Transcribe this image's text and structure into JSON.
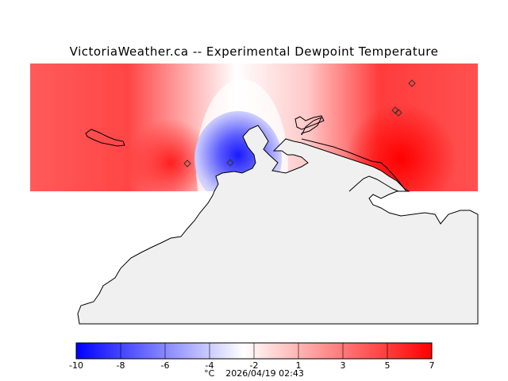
{
  "title": "VictoriaWeather.ca -- Experimental Dewpoint Temperature",
  "units": "°C",
  "timestamp": "2026/04/19 02:43",
  "colorbar": {
    "min": -10,
    "max": 7,
    "ticks": [
      "-10",
      "-8",
      "-6",
      "-4",
      "-2",
      "1",
      "3",
      "5",
      "7"
    ],
    "colors": {
      "cold": "#0000ff",
      "neutral": "#ffffff",
      "warm": "#ff0000"
    }
  },
  "map": {
    "land_color": "#f0f0f0",
    "coast_color": "#000000",
    "stations": 5
  }
}
